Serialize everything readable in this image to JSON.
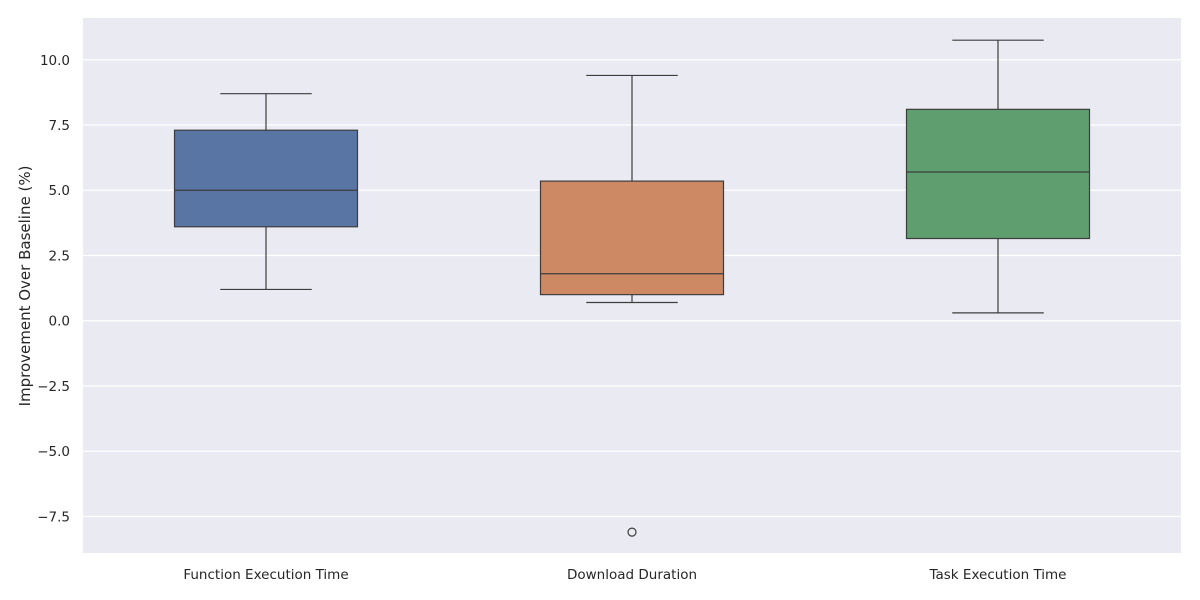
{
  "chart_data": {
    "type": "box",
    "title": "",
    "xlabel": "",
    "ylabel": "Improvement Over Baseline (%)",
    "ylim": [
      -8.9,
      11.6
    ],
    "yticks": [
      -7.5,
      -5.0,
      -2.5,
      0.0,
      2.5,
      5.0,
      7.5,
      10.0
    ],
    "ytick_labels": [
      "−7.5",
      "−5.0",
      "−2.5",
      "0.0",
      "2.5",
      "5.0",
      "7.5",
      "10.0"
    ],
    "grid": true,
    "categories": [
      "Function Execution Time",
      "Download Duration",
      "Task Execution Time"
    ],
    "boxes": [
      {
        "category": "Function Execution Time",
        "whisker_low": 1.2,
        "q1": 3.6,
        "median": 5.0,
        "q3": 7.3,
        "whisker_high": 8.7,
        "outliers": [],
        "color": "#5875a4"
      },
      {
        "category": "Download Duration",
        "whisker_low": 0.7,
        "q1": 1.0,
        "median": 1.8,
        "q3": 5.35,
        "whisker_high": 9.4,
        "outliers": [
          -8.1
        ],
        "color": "#cc8963"
      },
      {
        "category": "Task Execution Time",
        "whisker_low": 0.3,
        "q1": 3.15,
        "median": 5.7,
        "q3": 8.1,
        "whisker_high": 10.75,
        "outliers": [],
        "color": "#5f9e6e"
      }
    ]
  },
  "colors": {
    "plot_background": "#eaeaf2",
    "grid": "#ffffff",
    "box_edge": "#3d3d3d"
  }
}
